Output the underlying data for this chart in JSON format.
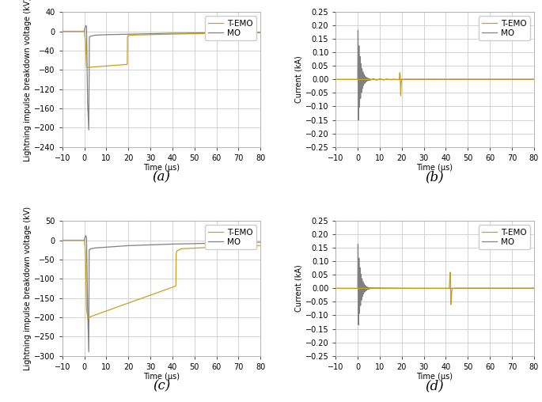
{
  "color_temo": "#c8a020",
  "color_mo": "#808080",
  "xlim": [
    -10,
    80
  ],
  "xlabel": "Time (μs)",
  "panel_labels": [
    "(a)",
    "(b)",
    "(c)",
    "(d)"
  ],
  "panel_label_fontsize": 12,
  "tick_fontsize": 7,
  "label_fontsize": 7,
  "legend_fontsize": 7.5,
  "grid_color": "#cccccc",
  "background_color": "#ffffff",
  "ax_facecolor": "#ffffff",
  "subplots": {
    "a": {
      "ylabel": "Lightning impulse breakdown voltage (kV)",
      "ylim": [
        -240,
        40
      ],
      "yticks": [
        40,
        0,
        -40,
        -80,
        -120,
        -160,
        -200,
        -240
      ]
    },
    "b": {
      "ylabel": "Current (kA)",
      "ylim": [
        -0.25,
        0.25
      ],
      "yticks": [
        0.25,
        0.2,
        0.15,
        0.1,
        0.05,
        0.0,
        -0.05,
        -0.1,
        -0.15,
        -0.2,
        -0.25
      ]
    },
    "c": {
      "ylabel": "Lightning impulse breakdown voltage (kV)",
      "ylim": [
        -300,
        50
      ],
      "yticks": [
        50,
        0,
        -50,
        -100,
        -150,
        -200,
        -250,
        -300
      ]
    },
    "d": {
      "ylabel": "Current (kA)",
      "ylim": [
        -0.25,
        0.25
      ],
      "yticks": [
        0.25,
        0.2,
        0.15,
        0.1,
        0.05,
        0.0,
        -0.05,
        -0.1,
        -0.15,
        -0.2,
        -0.25
      ]
    }
  }
}
